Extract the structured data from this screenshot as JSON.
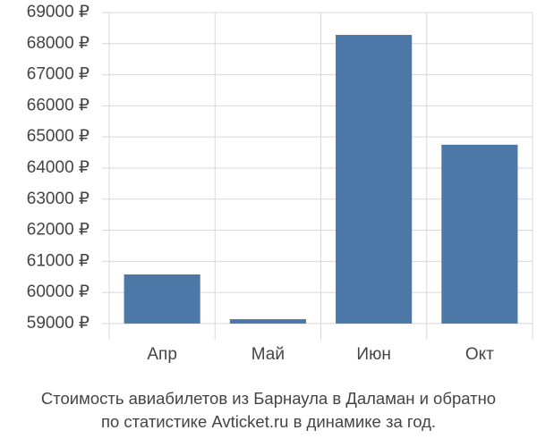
{
  "chart_data": {
    "type": "bar",
    "title": [
      "Стоимость авиабилетов из Барнаула в Даламан и обратно",
      "по статистике Avticket.ru в динамике за год."
    ],
    "categories": [
      "Апр",
      "Май",
      "Июн",
      "Окт"
    ],
    "values": [
      60580,
      59140,
      68280,
      64750
    ],
    "color": "#4c78a8",
    "ylim": [
      58480,
      69000
    ],
    "yticks": [
      {
        "value": 59000,
        "label": "59000 ₽"
      },
      {
        "value": 60000,
        "label": "60000 ₽"
      },
      {
        "value": 61000,
        "label": "61000 ₽"
      },
      {
        "value": 62000,
        "label": "62000 ₽"
      },
      {
        "value": 63000,
        "label": "63000 ₽"
      },
      {
        "value": 64000,
        "label": "64000 ₽"
      },
      {
        "value": 65000,
        "label": "65000 ₽"
      },
      {
        "value": 66000,
        "label": "66000 ₽"
      },
      {
        "value": 67000,
        "label": "67000 ₽"
      },
      {
        "value": 68000,
        "label": "68000 ₽"
      },
      {
        "value": 69000,
        "label": "69000 ₽"
      }
    ],
    "grid": true
  }
}
